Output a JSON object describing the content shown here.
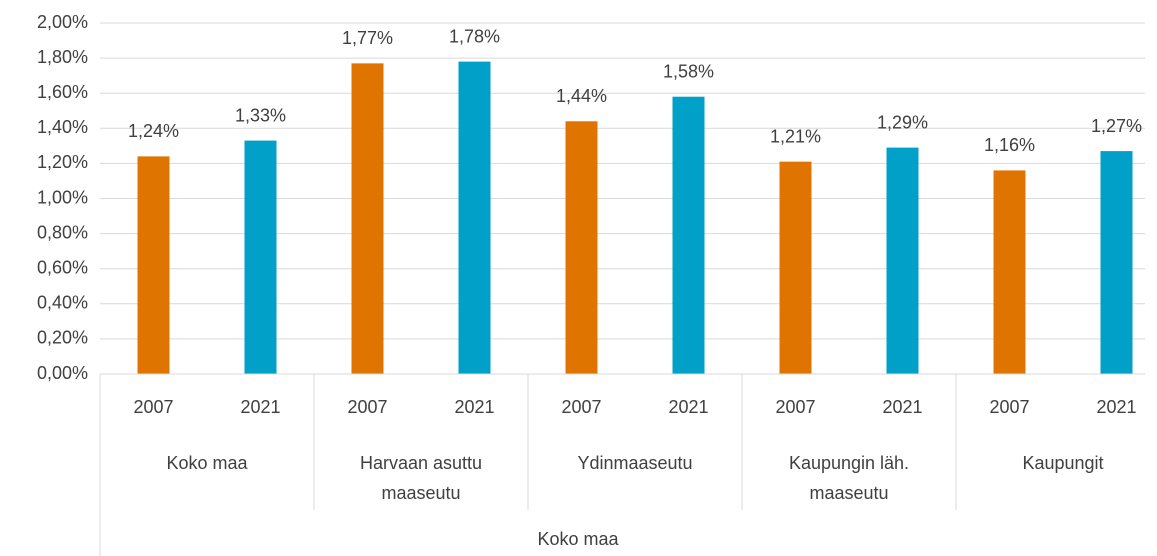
{
  "chart_data": {
    "type": "bar",
    "categories": [
      "Koko maa",
      "Harvaan asuttu maaseutu",
      "Ydinmaaseutu",
      "Kaupungin läh. maaseutu",
      "Kaupungit"
    ],
    "outer_category": "Koko maa",
    "series": [
      {
        "name": "2007",
        "color": "#e07400",
        "values": [
          1.24,
          1.77,
          1.44,
          1.21,
          1.16
        ],
        "value_labels": [
          "1,24%",
          "1,77%",
          "1,44%",
          "1,21%",
          "1,16%"
        ]
      },
      {
        "name": "2021",
        "color": "#00a0c8",
        "values": [
          1.33,
          1.78,
          1.58,
          1.29,
          1.27
        ],
        "value_labels": [
          "1,33%",
          "1,78%",
          "1,58%",
          "1,29%",
          "1,27%"
        ]
      }
    ],
    "ylim": [
      0,
      2
    ],
    "yticks": [
      {
        "value": 0,
        "label": "0,00%"
      },
      {
        "value": 0.2,
        "label": "0,20%"
      },
      {
        "value": 0.4,
        "label": "0,40%"
      },
      {
        "value": 0.6,
        "label": "0,60%"
      },
      {
        "value": 0.8,
        "label": "0,80%"
      },
      {
        "value": 1,
        "label": "1,00%"
      },
      {
        "value": 1.2,
        "label": "1,20%"
      },
      {
        "value": 1.4,
        "label": "1,40%"
      },
      {
        "value": 1.6,
        "label": "1,60%"
      },
      {
        "value": 1.8,
        "label": "1,80%"
      },
      {
        "value": 2,
        "label": "2,00%"
      }
    ],
    "grid": true
  }
}
